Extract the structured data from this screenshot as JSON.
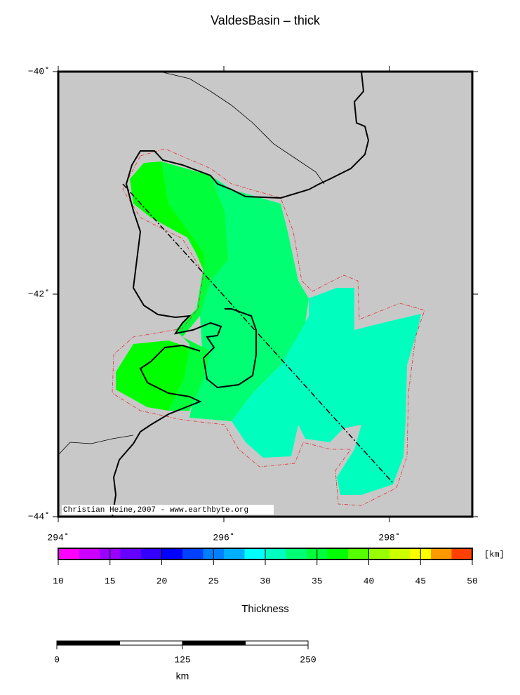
{
  "title": "ValdesBasin – thick",
  "map": {
    "xlim": [
      294,
      299
    ],
    "ylim": [
      -44,
      -40
    ],
    "xticks": [
      {
        "value": 294,
        "label": "294˚"
      },
      {
        "value": 296,
        "label": "296˚"
      },
      {
        "value": 298,
        "label": "298˚"
      }
    ],
    "yticks": [
      {
        "value": -40,
        "label": "−40˚"
      },
      {
        "value": -42,
        "label": "−42˚"
      },
      {
        "value": -44,
        "label": "−44˚"
      }
    ],
    "credit": "Christian Heine,2007 - www.earthbyte.org"
  },
  "colorbar": {
    "label": "Thickness",
    "unit": "[km]",
    "range": [
      10,
      50
    ],
    "ticks": [
      10,
      15,
      20,
      25,
      30,
      35,
      40,
      45,
      50
    ],
    "colors": [
      "#ff00ff",
      "#cc00ff",
      "#9900ff",
      "#6600ff",
      "#3300ff",
      "#0000ff",
      "#0040ff",
      "#0080ff",
      "#00b0ff",
      "#00ffff",
      "#00ffbf",
      "#00ff73",
      "#00ff3a",
      "#00ff00",
      "#55ff00",
      "#99ff00",
      "#ccff00",
      "#ffff00",
      "#ff9900",
      "#ff4000"
    ]
  },
  "scale_bar": {
    "unit": "km",
    "range": [
      0,
      250
    ],
    "ticks": [
      0,
      125,
      250
    ]
  }
}
